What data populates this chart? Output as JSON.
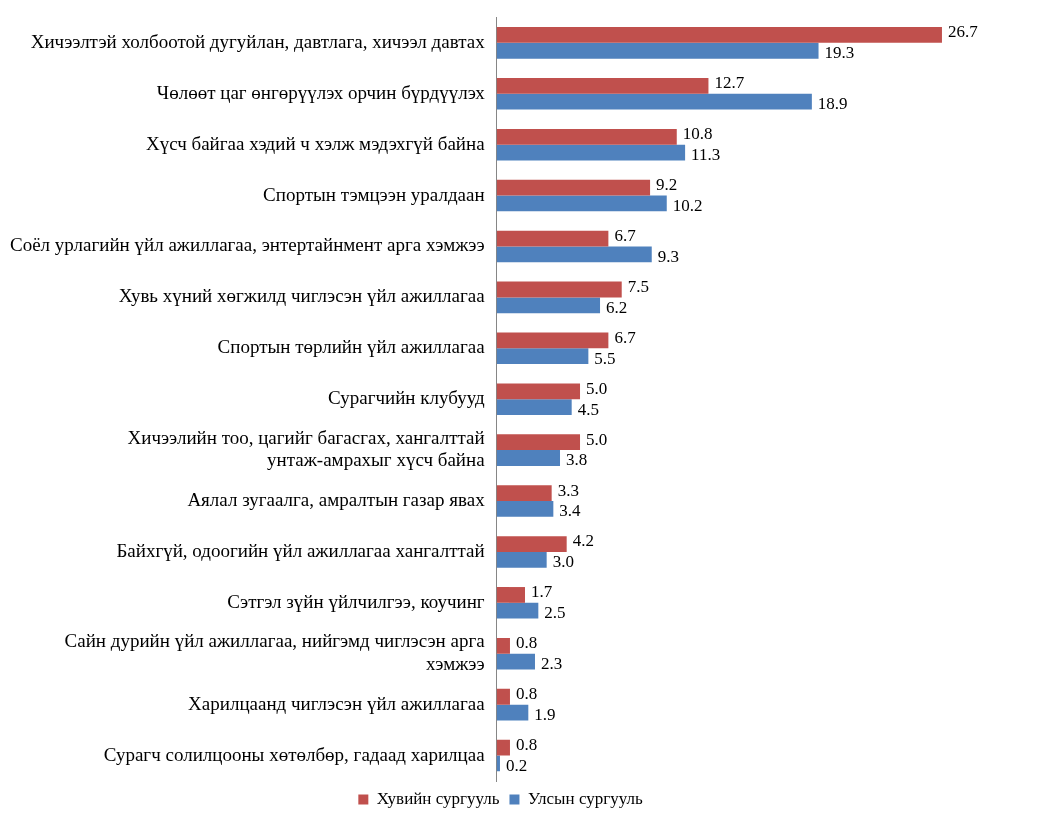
{
  "chart_data": {
    "type": "bar",
    "orientation": "horizontal",
    "legend": "bottom",
    "categories": [
      "Хичээлтэй холбоотой дугуйлан, давтлага, хичээл давтах",
      "Чөлөөт цаг өнгөрүүлэх орчин бүрдүүлэх",
      "Хүсч байгаа хэдий ч хэлж мэдэхгүй байна",
      "Спортын тэмцээн уралдаан",
      "Соёл урлагийн үйл ажиллагаа, энтертайнмент арга хэмжээ",
      "Хувь хүний хөгжилд чиглэсэн үйл ажиллагаа",
      "Спортын төрлийн үйл ажиллагаа",
      "Сурагчийн клубууд",
      "Хичээлийн тоо, цагийг багасгах, хангалттай унтаж-амрахыг хүсч байна",
      "Аялал зугаалга, амралтын газар явах",
      "Байхгүй, одоогийн үйл ажиллагаа хангалттай",
      "Сэтгэл зүйн үйлчилгээ, коучинг",
      "Сайн дурийн үйл ажиллагаа, нийгэмд чиглэсэн арга хэмжээ",
      "Харилцаанд чиглэсэн үйл ажиллагаа",
      "Сурагч солилцооны хөтөлбөр, гадаад харилцаа"
    ],
    "series": [
      {
        "name": "Хувийн сургууль",
        "color": "#c0504d",
        "values": [
          26.7,
          12.7,
          10.8,
          9.2,
          6.7,
          7.5,
          6.7,
          5.0,
          5.0,
          3.3,
          4.2,
          1.7,
          0.8,
          0.8,
          0.8
        ],
        "value_labels": [
          "26.7",
          "12.7",
          "10.8",
          "9.2",
          "6.7",
          "7.5",
          "6.7",
          "5.0",
          "5.0",
          "3.3",
          "4.2",
          "1.7",
          "0.8",
          "0.8",
          "0.8"
        ]
      },
      {
        "name": "Улсын сургууль",
        "color": "#4f81bd",
        "values": [
          19.3,
          18.9,
          11.3,
          10.2,
          9.3,
          6.2,
          5.5,
          4.5,
          3.8,
          3.4,
          3.0,
          2.5,
          2.3,
          1.9,
          0.2
        ],
        "value_labels": [
          "19.3",
          "18.9",
          "11.3",
          "10.2",
          "9.3",
          "6.2",
          "5.5",
          "4.5",
          "3.8",
          "3.4",
          "3.0",
          "2.5",
          "2.3",
          "1.9",
          "0.2"
        ]
      }
    ]
  }
}
